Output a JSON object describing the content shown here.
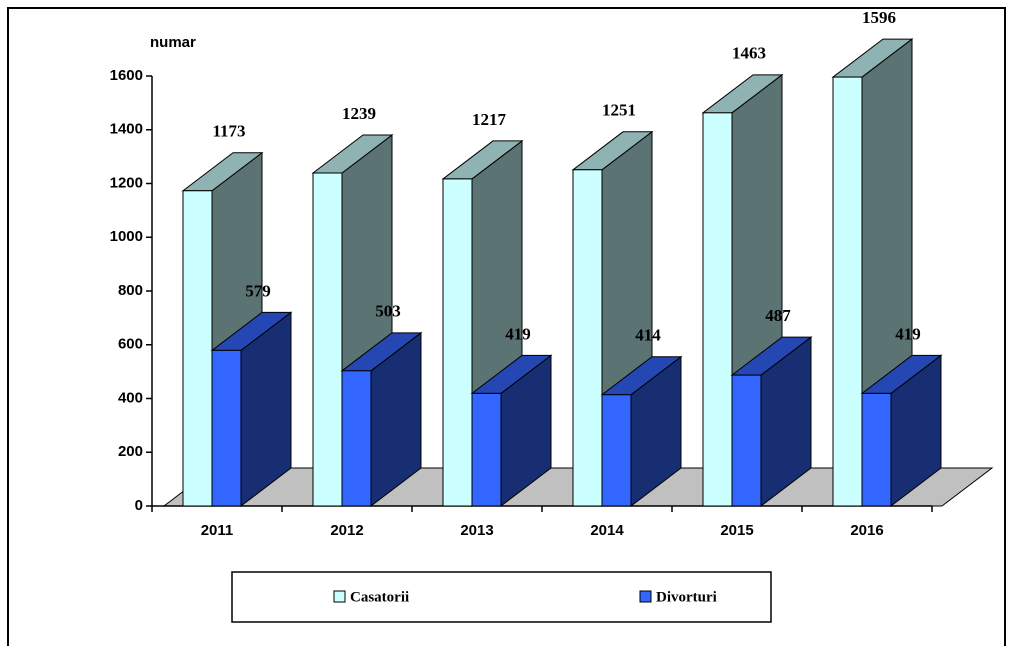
{
  "chart_data": {
    "type": "bar3d",
    "y_label": "numar",
    "categories": [
      "2011",
      "2012",
      "2013",
      "2014",
      "2015",
      "2016"
    ],
    "series": [
      {
        "name": "Casatorii",
        "color": "#ccffff",
        "values": [
          1173,
          1239,
          1217,
          1251,
          1463,
          1596
        ]
      },
      {
        "name": "Divorturi",
        "color": "#3366ff",
        "values": [
          579,
          503,
          419,
          414,
          487,
          419
        ]
      }
    ],
    "ylim": [
      0,
      1600
    ],
    "yticks": [
      0,
      200,
      400,
      600,
      800,
      1000,
      1200,
      1400,
      1600
    ]
  }
}
